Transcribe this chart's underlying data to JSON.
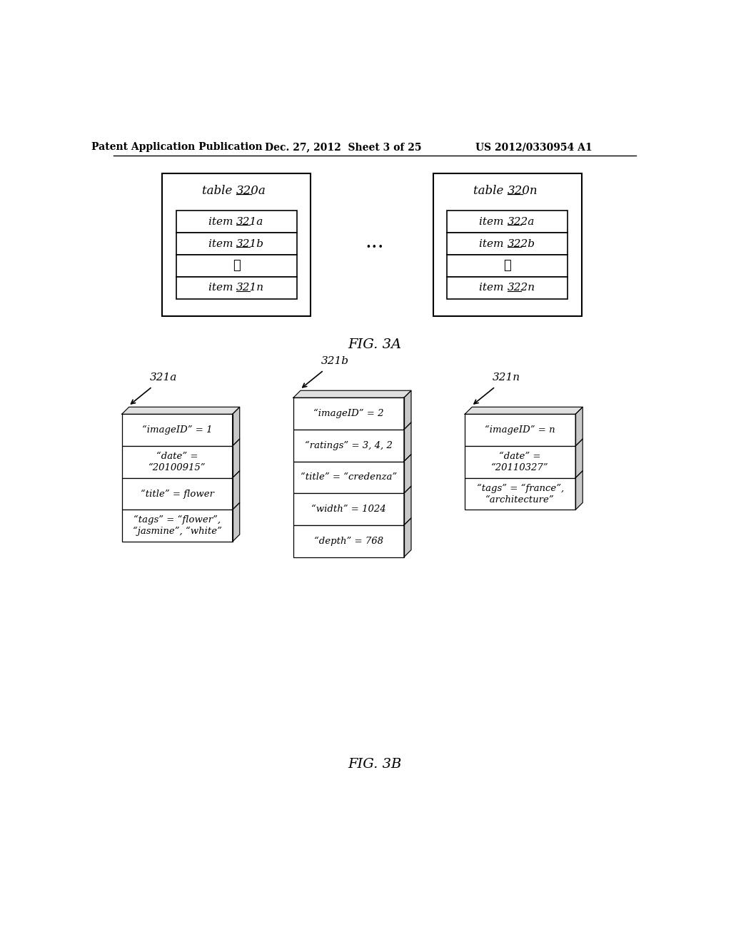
{
  "bg_color": "#ffffff",
  "header_text": "Patent Application Publication",
  "header_date": "Dec. 27, 2012  Sheet 3 of 25",
  "header_patent": "US 2012/0330954 A1",
  "fig3a_label": "FIG. 3A",
  "fig3b_label": "FIG. 3B",
  "table1_label_prefix": "table ",
  "table1_label_suffix": "320a",
  "table2_label_prefix": "table ",
  "table2_label_suffix": "320n",
  "table1_items_prefix": [
    "item ",
    "item ",
    "",
    "item "
  ],
  "table1_items_suffix": [
    "321a",
    "321b",
    "⋮",
    "321n"
  ],
  "table2_items_prefix": [
    "item ",
    "item ",
    "",
    "item "
  ],
  "table2_items_suffix": [
    "322a",
    "322b",
    "⋮",
    "322n"
  ],
  "dots_between": "...",
  "box3a_label": "321a",
  "box3b_label": "321b",
  "box3n_label": "321n",
  "box3a_rows": [
    "“imageID” = 1",
    "“date” =\n“20100915”",
    "“title” = flower",
    "“tags” = “flower”,\n“jasmine”, “white”"
  ],
  "box3b_rows": [
    "“imageID” = 2",
    "“ratings” = 3, 4, 2",
    "“title” = “credenza”",
    "“width” = 1024",
    "“depth” = 768"
  ],
  "box3n_rows": [
    "“imageID” = n",
    "“date” =\n“20110327”",
    "“tags” = “france”,\n“architecture”"
  ]
}
